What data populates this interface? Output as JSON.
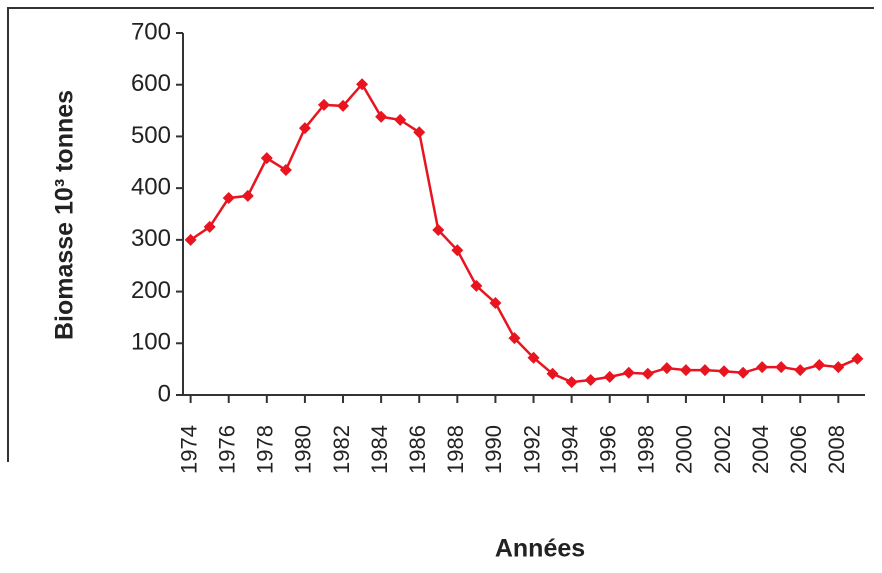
{
  "chart_data": {
    "type": "line",
    "ylabel": "Biomasse 10³ tonnes",
    "xlabel": "Années",
    "x": [
      1974,
      1975,
      1976,
      1977,
      1978,
      1979,
      1980,
      1981,
      1982,
      1983,
      1984,
      1985,
      1986,
      1987,
      1988,
      1989,
      1990,
      1991,
      1992,
      1993,
      1994,
      1995,
      1996,
      1997,
      1998,
      1999,
      2000,
      2001,
      2002,
      2003,
      2004,
      2005,
      2006,
      2007,
      2008,
      2009
    ],
    "series": [
      {
        "color": "#e8141f",
        "values": [
          300,
          325,
          381,
          385,
          458,
          435,
          516,
          561,
          559,
          601,
          538,
          532,
          508,
          319,
          280,
          211,
          178,
          110,
          72,
          41,
          25,
          29,
          35,
          43,
          41,
          52,
          48,
          48,
          46,
          43,
          54,
          54,
          48,
          58,
          54,
          70
        ]
      }
    ],
    "xlim": [
      1973.6,
      2009.4
    ],
    "xticks": [
      1974,
      1976,
      1978,
      1980,
      1982,
      1984,
      1986,
      1988,
      1990,
      1992,
      1994,
      1996,
      1998,
      2000,
      2002,
      2004,
      2006,
      2008
    ],
    "ylim": [
      0,
      700
    ],
    "yticks": [
      0,
      100,
      200,
      300,
      400,
      500,
      600,
      700
    ]
  }
}
